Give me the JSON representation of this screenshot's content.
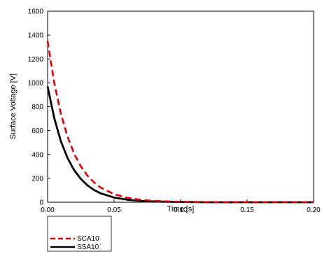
{
  "chart_data": {
    "type": "line",
    "xlabel": "Time [s]",
    "ylabel": "Surface Voltage [V]",
    "xlim": [
      0,
      0.2
    ],
    "ylim": [
      0,
      1600
    ],
    "x_ticks": [
      "0.00",
      "0.05",
      "0.10",
      "0.15",
      "0.20"
    ],
    "y_ticks": [
      "0",
      "200",
      "400",
      "600",
      "800",
      "1000",
      "1200",
      "1400",
      "1600"
    ],
    "grid": false,
    "legend_position": "bottom-left, below plot",
    "series": [
      {
        "name": "SCA10",
        "color": "#e00000",
        "style": "dashed",
        "x": [
          0,
          0.005,
          0.01,
          0.015,
          0.02,
          0.025,
          0.03,
          0.035,
          0.04,
          0.05,
          0.06,
          0.07,
          0.08,
          0.1,
          0.12,
          0.15,
          0.2
        ],
        "y": [
          1350,
          1000,
          740,
          550,
          405,
          300,
          222,
          165,
          122,
          67,
          37,
          20,
          11,
          3,
          1,
          0,
          0
        ]
      },
      {
        "name": "SSA10",
        "color": "#000000",
        "style": "solid",
        "x": [
          0,
          0.005,
          0.01,
          0.015,
          0.02,
          0.025,
          0.03,
          0.035,
          0.04,
          0.05,
          0.06,
          0.07,
          0.08,
          0.1,
          0.12,
          0.15,
          0.2
        ],
        "y": [
          970,
          705,
          510,
          370,
          268,
          195,
          141,
          102,
          74,
          39,
          21,
          11,
          6,
          2,
          0,
          0,
          0
        ]
      }
    ]
  }
}
